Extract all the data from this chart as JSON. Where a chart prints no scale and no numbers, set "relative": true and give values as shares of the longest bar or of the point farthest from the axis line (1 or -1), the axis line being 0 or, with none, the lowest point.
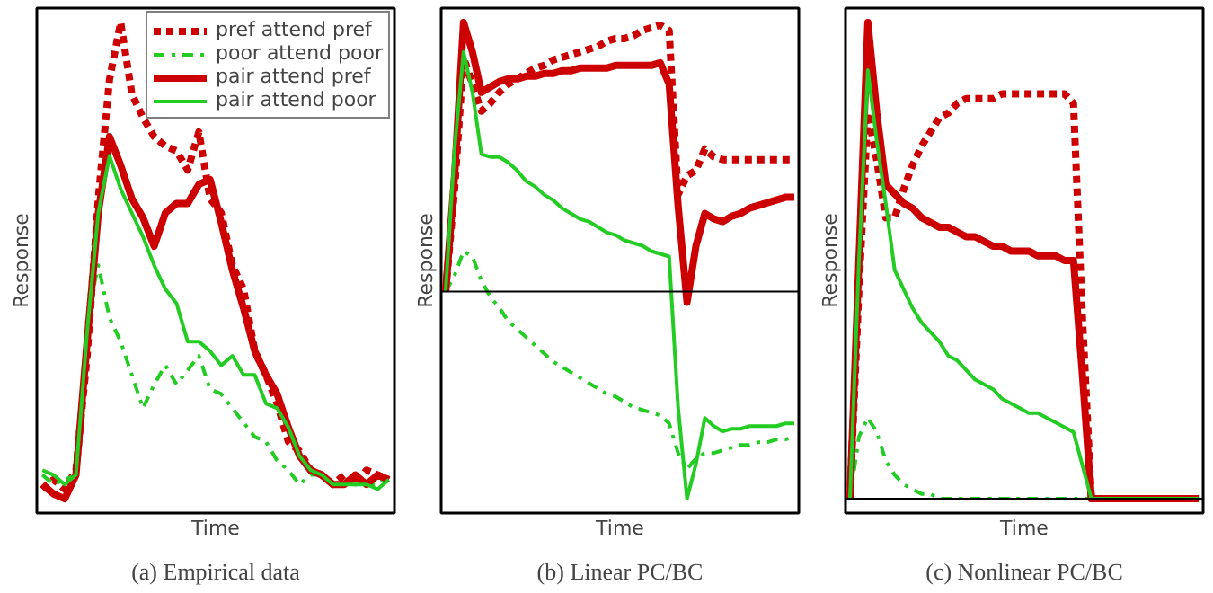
{
  "chart_data": [
    {
      "type": "line",
      "title": "(a) Empirical data",
      "xlabel": "Time",
      "ylabel": "Response",
      "relative": true,
      "legend": "top right",
      "categories": [
        null,
        null,
        null,
        null,
        null,
        null,
        null,
        null,
        null,
        null,
        null,
        null,
        null,
        null,
        null,
        null,
        null,
        null,
        null,
        null,
        null,
        null,
        null,
        null,
        null,
        null,
        null,
        null,
        null,
        null,
        null,
        null
      ],
      "series": [
        {
          "name": "pref attend pref",
          "color": "#cc0000",
          "line_style": "dotted",
          "values": [
            0.02,
            0.04,
            0.02,
            0.06,
            0.3,
            0.63,
            0.88,
            1.0,
            0.85,
            0.8,
            0.76,
            0.74,
            0.73,
            0.69,
            0.77,
            0.63,
            0.6,
            0.49,
            0.44,
            0.31,
            0.26,
            0.2,
            0.12,
            0.1,
            0.06,
            0.05,
            0.03,
            0.05,
            0.03,
            0.06,
            0.05,
            0.04
          ]
        },
        {
          "name": "poor attend poor",
          "color": "#22cc22",
          "line_style": "dashdot",
          "values": [
            0.05,
            0.03,
            0.04,
            0.05,
            0.38,
            0.49,
            0.38,
            0.33,
            0.26,
            0.19,
            0.24,
            0.28,
            0.24,
            0.27,
            0.3,
            0.23,
            0.22,
            0.19,
            0.16,
            0.13,
            0.12,
            0.08,
            0.06,
            0.03,
            0.05,
            0.05,
            0.03,
            0.03,
            0.03,
            0.03,
            0.03,
            0.05
          ]
        },
        {
          "name": "pair attend pref",
          "color": "#cc0000",
          "line_style": "solid",
          "values": [
            0.03,
            0.01,
            0,
            0.05,
            0.33,
            0.6,
            0.76,
            0.7,
            0.63,
            0.59,
            0.53,
            0.6,
            0.62,
            0.62,
            0.66,
            0.67,
            0.58,
            0.48,
            0.4,
            0.31,
            0.26,
            0.22,
            0.15,
            0.09,
            0.06,
            0.05,
            0.03,
            0.03,
            0.05,
            0.03,
            0.05,
            0.04
          ]
        },
        {
          "name": "pair attend poor",
          "color": "#22cc22",
          "line_style": "solid",
          "values": [
            0.06,
            0.05,
            0.03,
            0.05,
            0.35,
            0.6,
            0.72,
            0.65,
            0.6,
            0.55,
            0.49,
            0.44,
            0.41,
            0.33,
            0.33,
            0.31,
            0.28,
            0.3,
            0.26,
            0.26,
            0.2,
            0.19,
            0.15,
            0.09,
            0.06,
            0.05,
            0.03,
            0.03,
            0.03,
            0.03,
            0.02,
            0.04
          ]
        }
      ]
    },
    {
      "type": "line",
      "title": "(b) Linear PC/BC",
      "xlabel": "Time",
      "ylabel": "Response",
      "relative": true,
      "ref_lines": [
        {
          "axis": "y",
          "value": 0,
          "color": "#000000"
        }
      ],
      "categories": [
        null,
        null,
        null,
        null,
        null,
        null,
        null,
        null,
        null,
        null,
        null,
        null,
        null,
        null,
        null,
        null,
        null,
        null,
        null,
        null,
        null,
        null,
        null,
        null,
        null,
        null,
        null,
        null,
        null,
        null,
        null,
        null,
        null,
        null,
        null,
        null,
        null,
        null,
        null,
        null
      ],
      "series": [
        {
          "color": "#cc0000",
          "line_style": "dotted",
          "values": [
            0,
            0.38,
            0.87,
            0.77,
            0.67,
            0.7,
            0.74,
            0.77,
            0.79,
            0.81,
            0.83,
            0.84,
            0.86,
            0.87,
            0.88,
            0.89,
            0.9,
            0.91,
            0.93,
            0.94,
            0.94,
            0.95,
            0.97,
            0.98,
            0.99,
            0.97,
            0.36,
            0.43,
            0.45,
            0.53,
            0.5,
            0.49,
            0.49,
            0.49,
            0.49,
            0.49,
            0.49,
            0.49,
            0.49,
            0.49
          ]
        },
        {
          "color": "#22cc22",
          "line_style": "dashdot",
          "values": [
            0,
            0.06,
            0.15,
            0.13,
            0.04,
            -0.02,
            -0.06,
            -0.11,
            -0.14,
            -0.17,
            -0.2,
            -0.23,
            -0.26,
            -0.28,
            -0.3,
            -0.32,
            -0.34,
            -0.36,
            -0.38,
            -0.39,
            -0.41,
            -0.43,
            -0.44,
            -0.45,
            -0.46,
            -0.49,
            -0.6,
            -0.66,
            -0.62,
            -0.6,
            -0.6,
            -0.59,
            -0.58,
            -0.57,
            -0.57,
            -0.56,
            -0.56,
            -0.55,
            -0.55,
            -0.54
          ]
        },
        {
          "color": "#cc0000",
          "line_style": "solid",
          "values": [
            0,
            0.43,
            1.0,
            0.89,
            0.74,
            0.76,
            0.78,
            0.79,
            0.79,
            0.8,
            0.8,
            0.81,
            0.81,
            0.82,
            0.82,
            0.83,
            0.83,
            0.83,
            0.83,
            0.84,
            0.84,
            0.84,
            0.84,
            0.84,
            0.85,
            0.77,
            0.32,
            -0.04,
            0.17,
            0.29,
            0.27,
            0.26,
            0.28,
            0.29,
            0.31,
            0.32,
            0.33,
            0.34,
            0.35,
            0.35
          ]
        },
        {
          "color": "#22cc22",
          "line_style": "solid",
          "values": [
            0,
            0.53,
            0.89,
            0.74,
            0.51,
            0.5,
            0.5,
            0.48,
            0.45,
            0.41,
            0.39,
            0.36,
            0.34,
            0.31,
            0.29,
            0.27,
            0.26,
            0.24,
            0.22,
            0.21,
            0.19,
            0.18,
            0.17,
            0.15,
            0.14,
            0.13,
            -0.43,
            -0.77,
            -0.64,
            -0.47,
            -0.5,
            -0.52,
            -0.51,
            -0.51,
            -0.5,
            -0.5,
            -0.5,
            -0.5,
            -0.49,
            -0.49
          ]
        }
      ]
    },
    {
      "type": "line",
      "title": "(c) Nonlinear PC/BC",
      "xlabel": "Time",
      "ylabel": "Response",
      "relative": true,
      "ref_lines": [
        {
          "axis": "y",
          "value": 0,
          "color": "#000000"
        }
      ],
      "categories": [
        null,
        null,
        null,
        null,
        null,
        null,
        null,
        null,
        null,
        null,
        null,
        null,
        null,
        null,
        null,
        null,
        null,
        null,
        null,
        null,
        null,
        null,
        null,
        null,
        null,
        null,
        null,
        null,
        null,
        null,
        null,
        null,
        null,
        null,
        null,
        null,
        null,
        null,
        null,
        null
      ],
      "series": [
        {
          "color": "#cc0000",
          "line_style": "dotted",
          "values": [
            0,
            0.44,
            0.81,
            0.71,
            0.59,
            0.59,
            0.65,
            0.7,
            0.74,
            0.77,
            0.8,
            0.81,
            0.83,
            0.84,
            0.84,
            0.84,
            0.84,
            0.85,
            0.85,
            0.85,
            0.85,
            0.85,
            0.85,
            0.85,
            0.85,
            0.83,
            0.38,
            0,
            0,
            0,
            0,
            0,
            0,
            0,
            0,
            0,
            0,
            0,
            0,
            0
          ]
        },
        {
          "color": "#22cc22",
          "line_style": "dashdot",
          "values": [
            0,
            0.13,
            0.17,
            0.14,
            0.08,
            0.05,
            0.03,
            0.02,
            0.01,
            0.01,
            0,
            0,
            0,
            0,
            0,
            0,
            0,
            0,
            0,
            0,
            0,
            0,
            0,
            0,
            0,
            0,
            0,
            0,
            0,
            0,
            0,
            0,
            0,
            0,
            0,
            0,
            0,
            0,
            0,
            0
          ]
        },
        {
          "color": "#cc0000",
          "line_style": "solid",
          "values": [
            0,
            0.5,
            1.0,
            0.81,
            0.66,
            0.64,
            0.62,
            0.61,
            0.59,
            0.58,
            0.57,
            0.57,
            0.56,
            0.55,
            0.55,
            0.54,
            0.53,
            0.53,
            0.52,
            0.52,
            0.52,
            0.51,
            0.51,
            0.51,
            0.5,
            0.5,
            0.26,
            0,
            0,
            0,
            0,
            0,
            0,
            0,
            0,
            0,
            0,
            0,
            0,
            0
          ]
        },
        {
          "color": "#22cc22",
          "line_style": "solid",
          "values": [
            0,
            0.5,
            0.9,
            0.75,
            0.62,
            0.48,
            0.44,
            0.4,
            0.37,
            0.35,
            0.33,
            0.3,
            0.29,
            0.27,
            0.25,
            0.24,
            0.23,
            0.21,
            0.2,
            0.19,
            0.18,
            0.18,
            0.17,
            0.16,
            0.15,
            0.14,
            0.07,
            0,
            0,
            0,
            0,
            0,
            0,
            0,
            0,
            0,
            0,
            0,
            0,
            0
          ]
        }
      ]
    }
  ]
}
